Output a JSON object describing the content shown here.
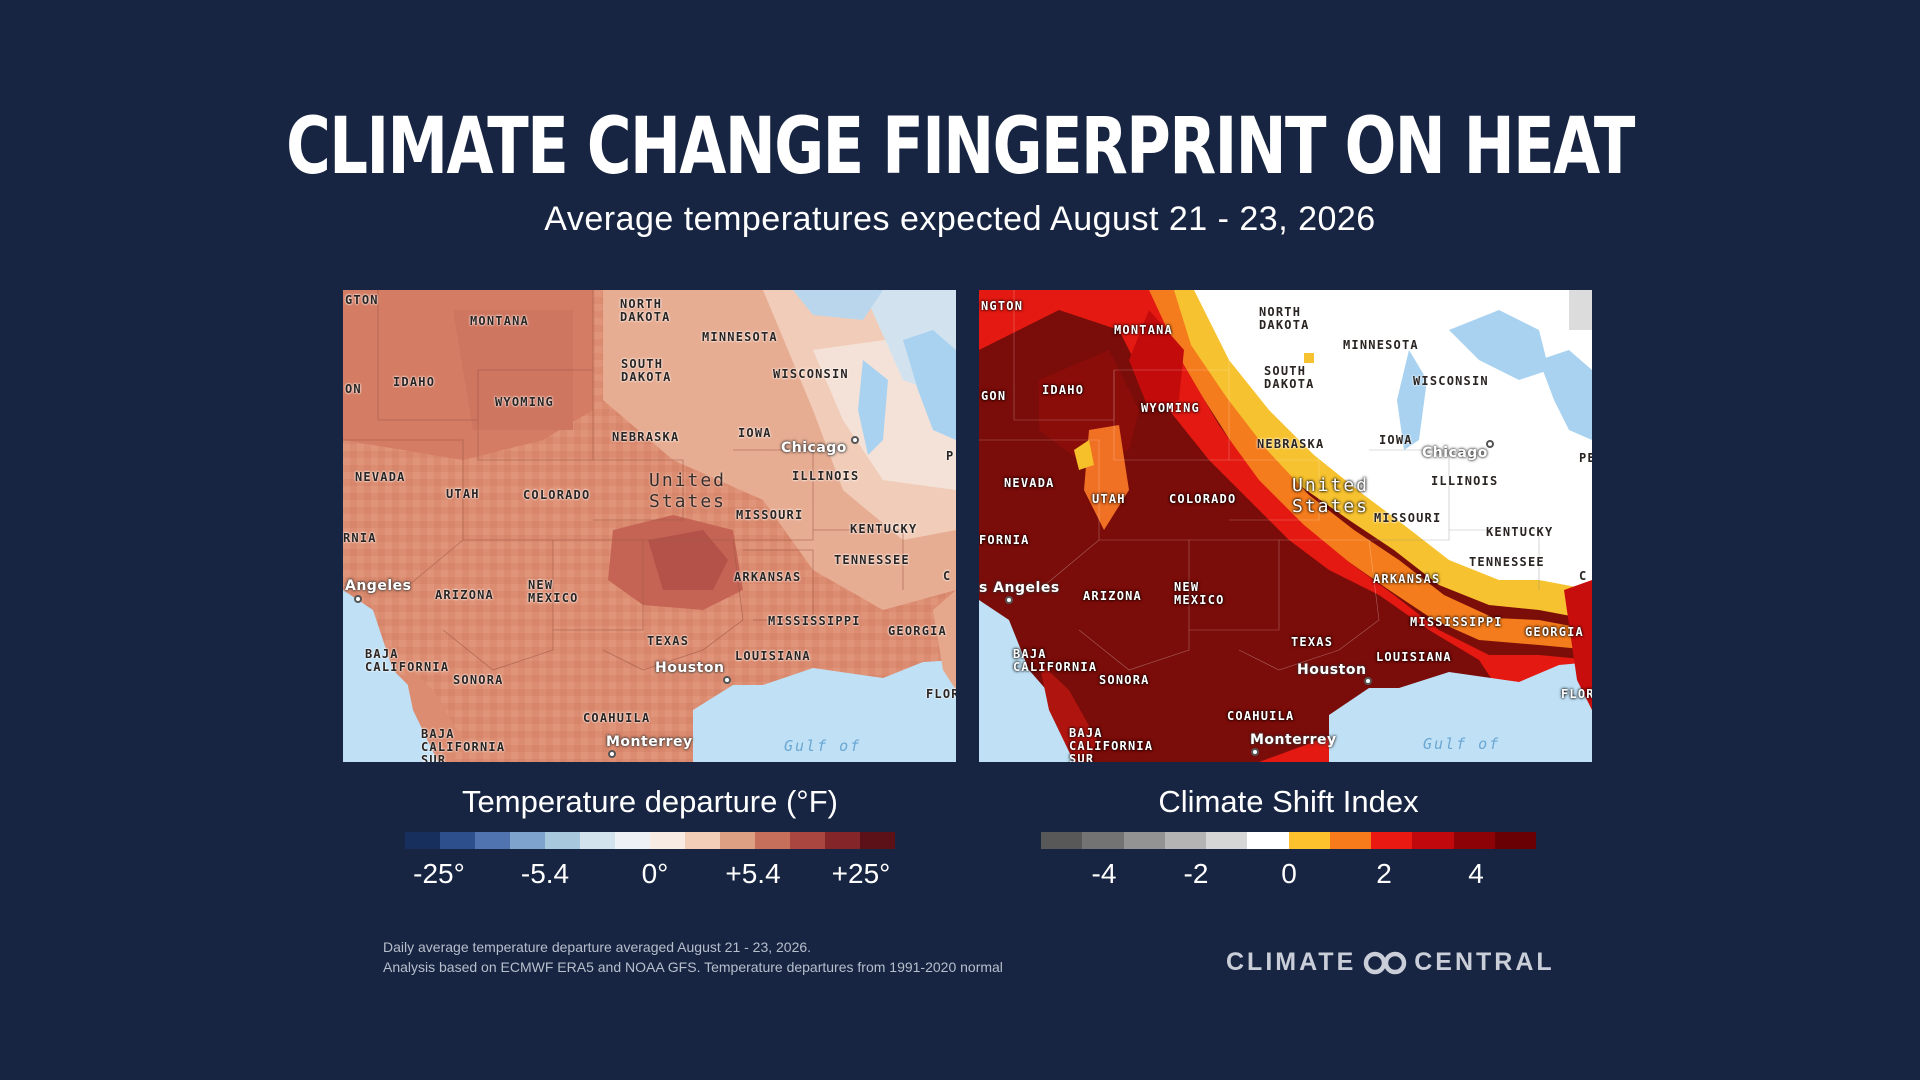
{
  "title": "CLIMATE CHANGE FINGERPRINT ON HEAT",
  "subtitle": "Average temperatures expected August 21 - 23, 2026",
  "map_labels": {
    "states": [
      "MONTANA",
      "NORTH\nDAKOTA",
      "MINNESOTA",
      "SOUTH\nDAKOTA",
      "WISCONSIN",
      "IDAHO",
      "WYOMING",
      "NEBRASKA",
      "IOWA",
      "ILLINOIS",
      "NEVADA",
      "UTAH",
      "COLORADO",
      "MISSOURI",
      "KENTUCKY",
      "TENNESSEE",
      "ARKANSAS",
      "ARIZONA",
      "NEW\nMEXICO",
      "MISSISSIPPI",
      "GEORGIA",
      "TEXAS",
      "LOUISIANA",
      "SONORA",
      "COAHUILA",
      "BAJA\nCALIFORNIA",
      "BAJA\nCALIFORNIA\nSUR"
    ],
    "cut_left": [
      "GTON",
      "ON",
      "RNIA",
      "FLORI",
      "C",
      "P"
    ],
    "cut_right": [
      "NGTON",
      "GON",
      "FORNIA",
      "FLORI",
      "C",
      "PE"
    ],
    "cities": {
      "chicago": "Chicago",
      "houston": "Houston",
      "monterrey": "Monterrey",
      "la_left": "Angeles",
      "la_right": "s Angeles"
    },
    "country": "United\nStates",
    "gulf": "Gulf of"
  },
  "legend_left": {
    "title": "Temperature departure (°F)",
    "colors": [
      "#172f5c",
      "#2d4f8c",
      "#4f74b0",
      "#7ea3cc",
      "#a8c8de",
      "#d3e3ee",
      "#eef2f6",
      "#f8ebe3",
      "#f2cdb7",
      "#dea083",
      "#c6705c",
      "#a8463f",
      "#832529",
      "#5c1119"
    ],
    "ticks": [
      "-25°",
      "-5.4",
      "0°",
      "+5.4",
      "+25°"
    ]
  },
  "legend_right": {
    "title": "Climate Shift Index",
    "colors": [
      "#585858",
      "#737373",
      "#939393",
      "#b4b4b4",
      "#d6d6d6",
      "#ffffff",
      "#fcc12d",
      "#f77b1b",
      "#ea1a13",
      "#c1080c",
      "#8c0206",
      "#690003"
    ],
    "ticks": [
      "-4",
      "-2",
      "0",
      "2",
      "4"
    ]
  },
  "footnote": {
    "line1": "Daily average temperature departure averaged August 21 - 23, 2026.",
    "line2": "Analysis based on ECMWF ERA5 and NOAA GFS. Temperature departures from 1991-2020 normal"
  },
  "logo": {
    "left": "CLIMATE",
    "right": "CENTRAL"
  }
}
